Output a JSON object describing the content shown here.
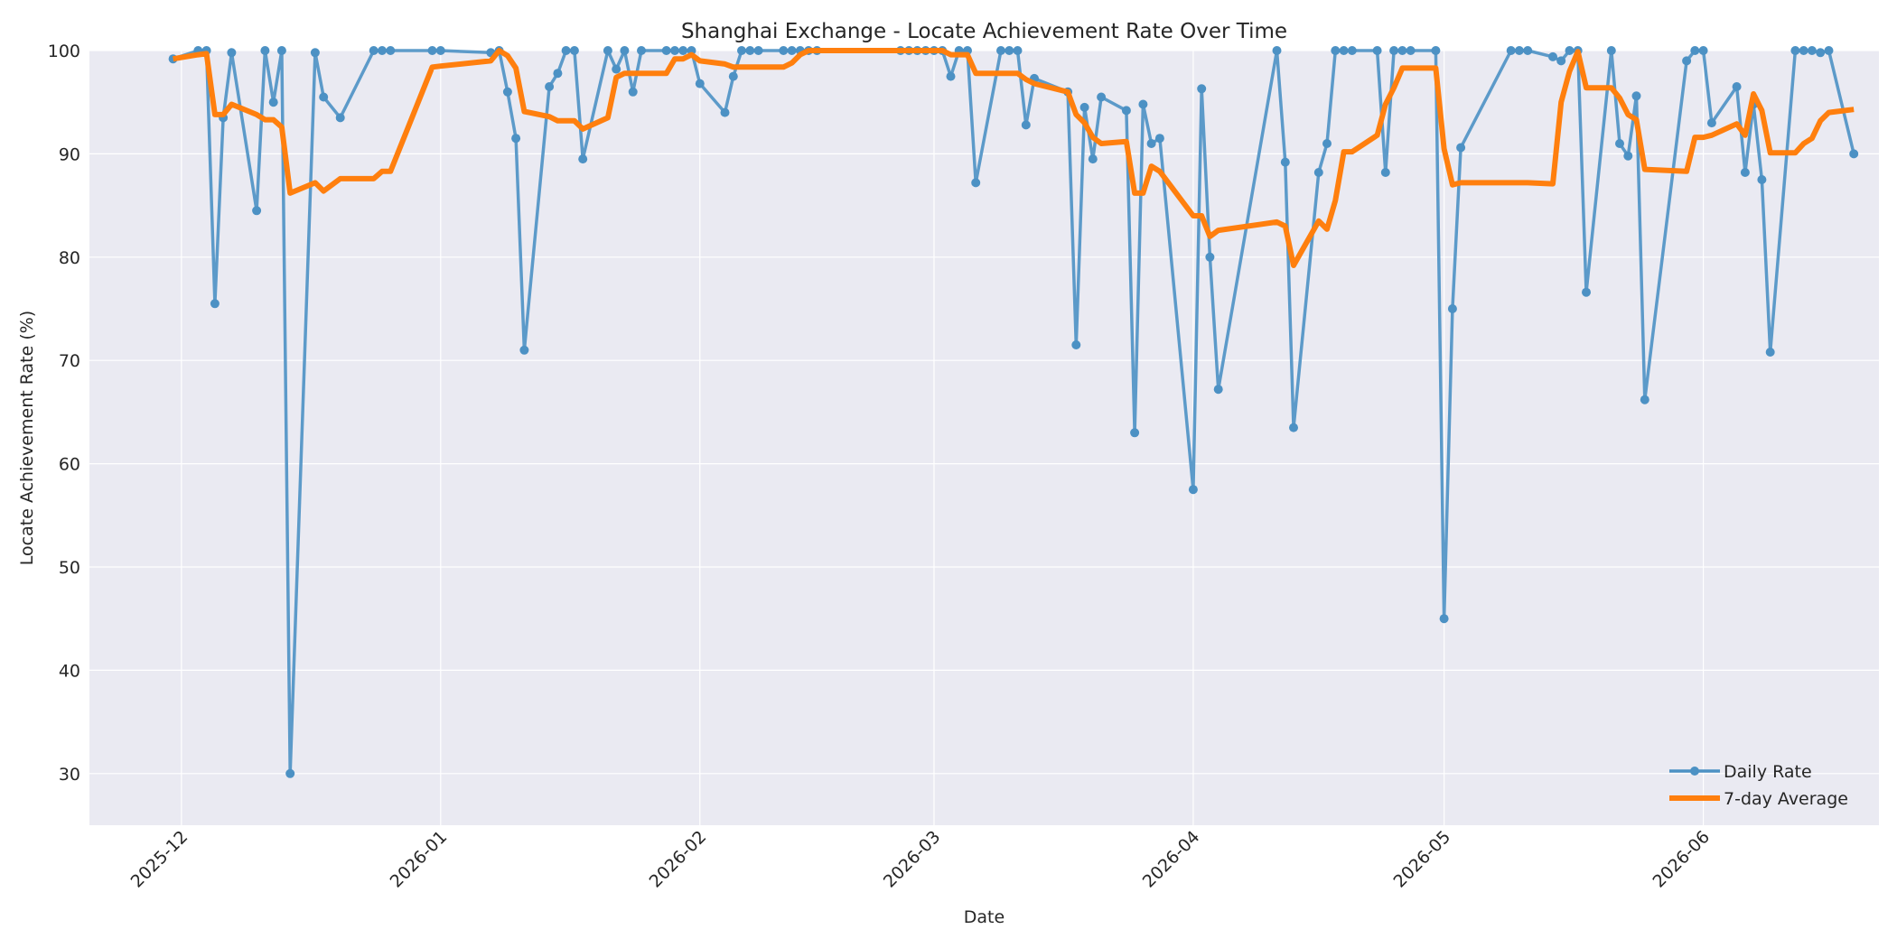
{
  "chart_data": {
    "type": "line",
    "title": "Shanghai Exchange - Locate Achievement Rate Over Time",
    "xlabel": "Date",
    "ylabel": "Locate Achievement Rate (%)",
    "ylim": [
      25,
      100
    ],
    "xlim": [
      "2025-11-20",
      "2026-06-22"
    ],
    "yticks": [
      30,
      40,
      50,
      60,
      70,
      80,
      90,
      100
    ],
    "xticks": [
      {
        "date": "2025-12-01",
        "label": "2025-12"
      },
      {
        "date": "2026-01-01",
        "label": "2026-01"
      },
      {
        "date": "2026-02-01",
        "label": "2026-02"
      },
      {
        "date": "2026-03-01",
        "label": "2026-03"
      },
      {
        "date": "2026-04-01",
        "label": "2026-04"
      },
      {
        "date": "2026-05-01",
        "label": "2026-05"
      },
      {
        "date": "2026-06-01",
        "label": "2026-06"
      }
    ],
    "grid": true,
    "legend_position": "lower right",
    "series": [
      {
        "name": "Daily Rate",
        "color": "#4c91c4",
        "style": "line-markers",
        "points": [
          [
            "2025-11-30",
            99.2
          ],
          [
            "2025-12-03",
            100
          ],
          [
            "2025-12-04",
            100
          ],
          [
            "2025-12-05",
            75.5
          ],
          [
            "2025-12-06",
            93.5
          ],
          [
            "2025-12-07",
            99.8
          ],
          [
            "2025-12-10",
            84.5
          ],
          [
            "2025-12-11",
            100
          ],
          [
            "2025-12-12",
            95
          ],
          [
            "2025-12-13",
            100
          ],
          [
            "2025-12-14",
            30
          ],
          [
            "2025-12-17",
            99.8
          ],
          [
            "2025-12-18",
            95.5
          ],
          [
            "2025-12-20",
            93.5
          ],
          [
            "2025-12-24",
            100
          ],
          [
            "2025-12-25",
            100
          ],
          [
            "2025-12-26",
            100
          ],
          [
            "2025-12-31",
            100
          ],
          [
            "2026-01-01",
            100
          ],
          [
            "2026-01-07",
            99.8
          ],
          [
            "2026-01-08",
            100
          ],
          [
            "2026-01-09",
            96
          ],
          [
            "2026-01-10",
            91.5
          ],
          [
            "2026-01-11",
            71
          ],
          [
            "2026-01-14",
            96.5
          ],
          [
            "2026-01-15",
            97.8
          ],
          [
            "2026-01-16",
            100
          ],
          [
            "2026-01-17",
            100
          ],
          [
            "2026-01-18",
            89.5
          ],
          [
            "2026-01-21",
            100
          ],
          [
            "2026-01-22",
            98.2
          ],
          [
            "2026-01-23",
            100
          ],
          [
            "2026-01-24",
            96
          ],
          [
            "2026-01-25",
            100
          ],
          [
            "2026-01-28",
            100
          ],
          [
            "2026-01-29",
            100
          ],
          [
            "2026-01-30",
            100
          ],
          [
            "2026-01-31",
            100
          ],
          [
            "2026-02-01",
            96.8
          ],
          [
            "2026-02-04",
            94
          ],
          [
            "2026-02-05",
            97.5
          ],
          [
            "2026-02-06",
            100
          ],
          [
            "2026-02-07",
            100
          ],
          [
            "2026-02-08",
            100
          ],
          [
            "2026-02-11",
            100
          ],
          [
            "2026-02-12",
            100
          ],
          [
            "2026-02-13",
            100
          ],
          [
            "2026-02-14",
            100
          ],
          [
            "2026-02-15",
            100
          ],
          [
            "2026-02-25",
            100
          ],
          [
            "2026-02-26",
            100
          ],
          [
            "2026-02-27",
            100
          ],
          [
            "2026-02-28",
            100
          ],
          [
            "2026-03-01",
            100
          ],
          [
            "2026-03-02",
            100
          ],
          [
            "2026-03-03",
            97.5
          ],
          [
            "2026-03-04",
            100
          ],
          [
            "2026-03-05",
            100
          ],
          [
            "2026-03-06",
            87.2
          ],
          [
            "2026-03-09",
            100
          ],
          [
            "2026-03-10",
            100
          ],
          [
            "2026-03-11",
            100
          ],
          [
            "2026-03-12",
            92.8
          ],
          [
            "2026-03-13",
            97.3
          ],
          [
            "2026-03-17",
            96
          ],
          [
            "2026-03-18",
            71.5
          ],
          [
            "2026-03-19",
            94.5
          ],
          [
            "2026-03-20",
            89.5
          ],
          [
            "2026-03-21",
            95.5
          ],
          [
            "2026-03-24",
            94.2
          ],
          [
            "2026-03-25",
            63
          ],
          [
            "2026-03-26",
            94.8
          ],
          [
            "2026-03-27",
            91
          ],
          [
            "2026-03-28",
            91.5
          ],
          [
            "2026-04-01",
            57.5
          ],
          [
            "2026-04-02",
            96.3
          ],
          [
            "2026-04-03",
            80
          ],
          [
            "2026-04-04",
            67.2
          ],
          [
            "2026-04-11",
            100
          ],
          [
            "2026-04-12",
            89.2
          ],
          [
            "2026-04-13",
            63.5
          ],
          [
            "2026-04-16",
            88.2
          ],
          [
            "2026-04-17",
            91
          ],
          [
            "2026-04-18",
            100
          ],
          [
            "2026-04-19",
            100
          ],
          [
            "2026-04-20",
            100
          ],
          [
            "2026-04-23",
            100
          ],
          [
            "2026-04-24",
            88.2
          ],
          [
            "2026-04-25",
            100
          ],
          [
            "2026-04-26",
            100
          ],
          [
            "2026-04-27",
            100
          ],
          [
            "2026-04-30",
            100
          ],
          [
            "2026-05-01",
            45
          ],
          [
            "2026-05-02",
            75
          ],
          [
            "2026-05-03",
            90.6
          ],
          [
            "2026-05-09",
            100
          ],
          [
            "2026-05-10",
            100
          ],
          [
            "2026-05-11",
            100
          ],
          [
            "2026-05-14",
            99.4
          ],
          [
            "2026-05-15",
            99
          ],
          [
            "2026-05-16",
            100
          ],
          [
            "2026-05-17",
            100
          ],
          [
            "2026-05-18",
            76.6
          ],
          [
            "2026-05-21",
            100
          ],
          [
            "2026-05-22",
            91
          ],
          [
            "2026-05-23",
            89.8
          ],
          [
            "2026-05-24",
            95.6
          ],
          [
            "2026-05-25",
            66.2
          ],
          [
            "2026-05-30",
            99
          ],
          [
            "2026-05-31",
            100
          ],
          [
            "2026-06-01",
            100
          ],
          [
            "2026-06-02",
            93
          ],
          [
            "2026-06-05",
            96.5
          ],
          [
            "2026-06-06",
            88.2
          ],
          [
            "2026-06-07",
            94.8
          ],
          [
            "2026-06-08",
            87.5
          ],
          [
            "2026-06-09",
            70.8
          ],
          [
            "2026-06-12",
            100
          ],
          [
            "2026-06-13",
            100
          ],
          [
            "2026-06-14",
            100
          ],
          [
            "2026-06-15",
            99.8
          ],
          [
            "2026-06-16",
            100
          ],
          [
            "2026-06-19",
            90
          ]
        ]
      },
      {
        "name": "7-day Average",
        "color": "#ff7f0e",
        "style": "line",
        "points": [
          [
            "2025-11-30",
            99.2
          ],
          [
            "2025-12-03",
            99.6
          ],
          [
            "2025-12-04",
            99.7
          ],
          [
            "2025-12-05",
            93.8
          ],
          [
            "2025-12-06",
            93.8
          ],
          [
            "2025-12-07",
            94.8
          ],
          [
            "2025-12-10",
            93.8
          ],
          [
            "2025-12-11",
            93.3
          ],
          [
            "2025-12-12",
            93.3
          ],
          [
            "2025-12-13",
            92.6
          ],
          [
            "2025-12-14",
            86.2
          ],
          [
            "2025-12-17",
            87.2
          ],
          [
            "2025-12-18",
            86.4
          ],
          [
            "2025-12-20",
            87.6
          ],
          [
            "2025-12-24",
            87.6
          ],
          [
            "2025-12-25",
            88.3
          ],
          [
            "2025-12-26",
            88.3
          ],
          [
            "2025-12-31",
            98.4
          ],
          [
            "2026-01-01",
            98.5
          ],
          [
            "2026-01-07",
            99
          ],
          [
            "2026-01-08",
            100
          ],
          [
            "2026-01-09",
            99.5
          ],
          [
            "2026-01-10",
            98.3
          ],
          [
            "2026-01-11",
            94.1
          ],
          [
            "2026-01-14",
            93.6
          ],
          [
            "2026-01-15",
            93.2
          ],
          [
            "2026-01-16",
            93.2
          ],
          [
            "2026-01-17",
            93.2
          ],
          [
            "2026-01-18",
            92.4
          ],
          [
            "2026-01-21",
            93.5
          ],
          [
            "2026-01-22",
            97.4
          ],
          [
            "2026-01-23",
            97.8
          ],
          [
            "2026-01-24",
            97.8
          ],
          [
            "2026-01-25",
            97.8
          ],
          [
            "2026-01-28",
            97.8
          ],
          [
            "2026-01-29",
            99.2
          ],
          [
            "2026-01-30",
            99.2
          ],
          [
            "2026-01-31",
            99.6
          ],
          [
            "2026-02-01",
            99
          ],
          [
            "2026-02-04",
            98.7
          ],
          [
            "2026-02-05",
            98.4
          ],
          [
            "2026-02-06",
            98.4
          ],
          [
            "2026-02-07",
            98.4
          ],
          [
            "2026-02-08",
            98.4
          ],
          [
            "2026-02-11",
            98.4
          ],
          [
            "2026-02-12",
            98.8
          ],
          [
            "2026-02-13",
            99.6
          ],
          [
            "2026-02-14",
            100
          ],
          [
            "2026-02-15",
            100
          ],
          [
            "2026-02-25",
            100
          ],
          [
            "2026-02-26",
            100
          ],
          [
            "2026-02-27",
            100
          ],
          [
            "2026-02-28",
            100
          ],
          [
            "2026-03-01",
            100
          ],
          [
            "2026-03-02",
            100
          ],
          [
            "2026-03-03",
            99.6
          ],
          [
            "2026-03-04",
            99.6
          ],
          [
            "2026-03-05",
            99.6
          ],
          [
            "2026-03-06",
            97.8
          ],
          [
            "2026-03-09",
            97.8
          ],
          [
            "2026-03-10",
            97.8
          ],
          [
            "2026-03-11",
            97.8
          ],
          [
            "2026-03-12",
            97.2
          ],
          [
            "2026-03-13",
            96.8
          ],
          [
            "2026-03-17",
            96
          ],
          [
            "2026-03-18",
            93.8
          ],
          [
            "2026-03-19",
            93
          ],
          [
            "2026-03-20",
            91.6
          ],
          [
            "2026-03-21",
            91
          ],
          [
            "2026-03-24",
            91.2
          ],
          [
            "2026-03-25",
            86.2
          ],
          [
            "2026-03-26",
            86.2
          ],
          [
            "2026-03-27",
            88.8
          ],
          [
            "2026-03-28",
            88.3
          ],
          [
            "2026-04-01",
            84
          ],
          [
            "2026-04-02",
            84
          ],
          [
            "2026-04-03",
            82
          ],
          [
            "2026-04-04",
            82.6
          ],
          [
            "2026-04-11",
            83.4
          ],
          [
            "2026-04-12",
            83
          ],
          [
            "2026-04-13",
            79.2
          ],
          [
            "2026-04-16",
            83.5
          ],
          [
            "2026-04-17",
            82.7
          ],
          [
            "2026-04-18",
            85.5
          ],
          [
            "2026-04-19",
            90.2
          ],
          [
            "2026-04-20",
            90.2
          ],
          [
            "2026-04-23",
            91.8
          ],
          [
            "2026-04-24",
            94.8
          ],
          [
            "2026-04-25",
            96.4
          ],
          [
            "2026-04-26",
            98.3
          ],
          [
            "2026-04-27",
            98.3
          ],
          [
            "2026-04-30",
            98.3
          ],
          [
            "2026-05-01",
            90.5
          ],
          [
            "2026-05-02",
            87
          ],
          [
            "2026-05-03",
            87.2
          ],
          [
            "2026-05-09",
            87.2
          ],
          [
            "2026-05-10",
            87.2
          ],
          [
            "2026-05-11",
            87.2
          ],
          [
            "2026-05-14",
            87.1
          ],
          [
            "2026-05-15",
            95
          ],
          [
            "2026-05-16",
            98
          ],
          [
            "2026-05-17",
            99.9
          ],
          [
            "2026-05-18",
            96.4
          ],
          [
            "2026-05-21",
            96.4
          ],
          [
            "2026-05-22",
            95.4
          ],
          [
            "2026-05-23",
            93.8
          ],
          [
            "2026-05-24",
            93.3
          ],
          [
            "2026-05-25",
            88.5
          ],
          [
            "2026-05-30",
            88.3
          ],
          [
            "2026-05-31",
            91.6
          ],
          [
            "2026-06-01",
            91.6
          ],
          [
            "2026-06-02",
            91.8
          ],
          [
            "2026-06-05",
            92.9
          ],
          [
            "2026-06-06",
            91.8
          ],
          [
            "2026-06-07",
            95.8
          ],
          [
            "2026-06-08",
            94.2
          ],
          [
            "2026-06-09",
            90.1
          ],
          [
            "2026-06-12",
            90.1
          ],
          [
            "2026-06-13",
            91
          ],
          [
            "2026-06-14",
            91.5
          ],
          [
            "2026-06-15",
            93.2
          ],
          [
            "2026-06-16",
            94
          ],
          [
            "2026-06-19",
            94.3
          ]
        ]
      }
    ]
  }
}
